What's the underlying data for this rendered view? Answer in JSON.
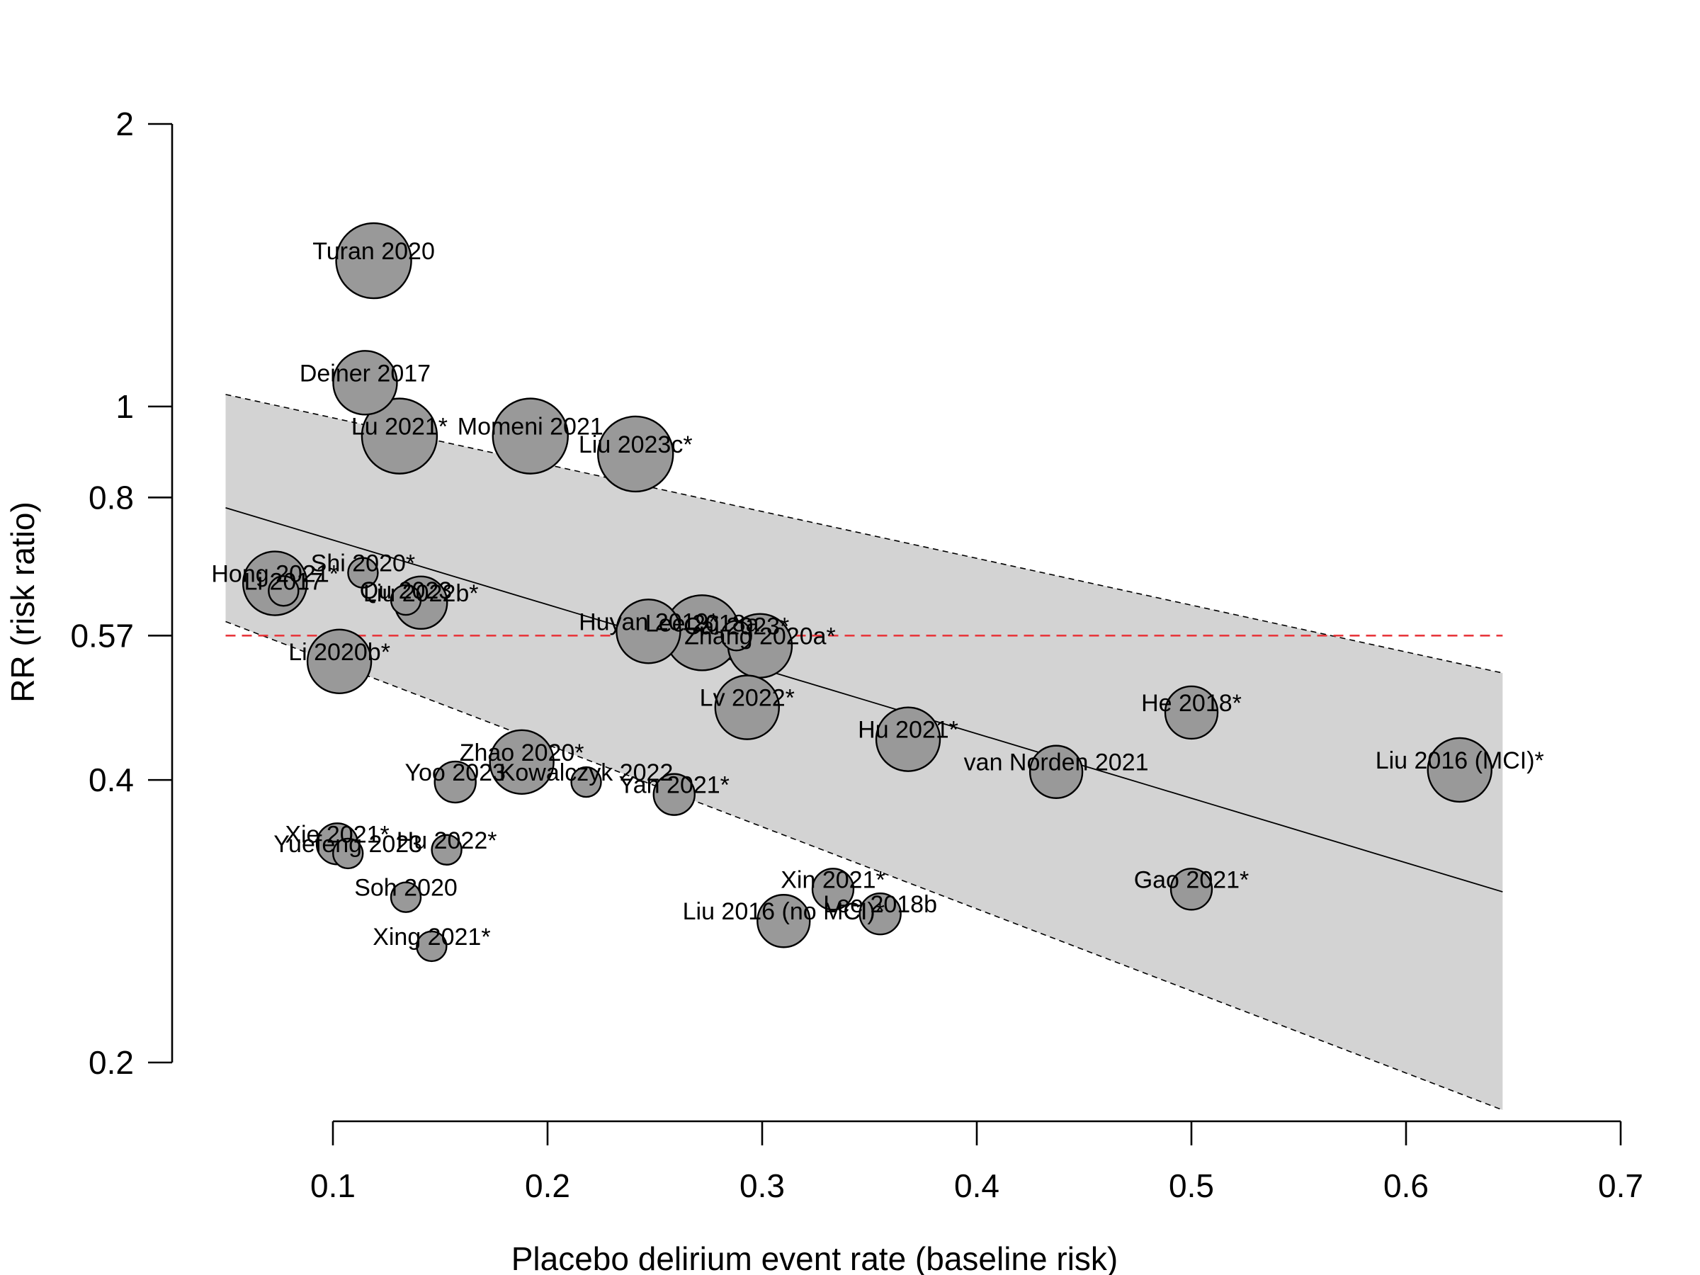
{
  "chart_data": {
    "type": "scatter",
    "title": "",
    "xlabel": "Placebo delirium event rate (baseline risk)",
    "ylabel": "RR (risk ratio)",
    "xlim": [
      0.1,
      0.7
    ],
    "ylim": [
      0.2,
      2
    ],
    "y_scale": "log",
    "x_ticks": [
      "0.1",
      "0.2",
      "0.3",
      "0.4",
      "0.5",
      "0.6",
      "0.7"
    ],
    "y_ticks": [
      "0.2",
      "0.4",
      "0.57",
      "0.8",
      "1",
      "2"
    ],
    "reference_line": {
      "y": 0.57,
      "style": "dashed",
      "color": "#e8383d"
    },
    "regression": {
      "x_range": [
        0.05,
        0.645
      ],
      "fit": [
        0.78,
        0.304
      ],
      "upper": [
        1.03,
        0.52
      ],
      "lower": [
        0.59,
        0.178
      ]
    },
    "colors": {
      "point_fill": "#999999",
      "band_fill": "#d3d3d3",
      "fit_line": "#000000",
      "ref_line": "#e8383d"
    },
    "points": [
      {
        "label": "Turan 2020",
        "x": 0.119,
        "y": 1.43,
        "size": 5
      },
      {
        "label": "Deiner 2017",
        "x": 0.115,
        "y": 1.06,
        "size": 4
      },
      {
        "label": "Lu 2021*",
        "x": 0.131,
        "y": 0.93,
        "size": 5
      },
      {
        "label": "Momeni 2021",
        "x": 0.192,
        "y": 0.93,
        "size": 5
      },
      {
        "label": "Liu 2023c*",
        "x": 0.241,
        "y": 0.89,
        "size": 5
      },
      {
        "label": "Shi 2020*",
        "x": 0.114,
        "y": 0.665,
        "size": 1
      },
      {
        "label": "Hong 2021*",
        "x": 0.073,
        "y": 0.648,
        "size": 4
      },
      {
        "label": "Li 2017",
        "x": 0.077,
        "y": 0.636,
        "size": 1
      },
      {
        "label": "Liu 2022b*",
        "x": 0.141,
        "y": 0.618,
        "size": 3
      },
      {
        "label": "Qu 2023",
        "x": 0.134,
        "y": 0.622,
        "size": 1
      },
      {
        "label": "Huyan 2019*",
        "x": 0.247,
        "y": 0.576,
        "size": 4
      },
      {
        "label": "Lee 2018a",
        "x": 0.272,
        "y": 0.574,
        "size": 5
      },
      {
        "label": "Zhang 2020a*",
        "x": 0.299,
        "y": 0.556,
        "size": 4
      },
      {
        "label": "Cai 2023*",
        "x": 0.288,
        "y": 0.57,
        "size": 1
      },
      {
        "label": "Li 2020b*",
        "x": 0.103,
        "y": 0.535,
        "size": 4
      },
      {
        "label": "Lv 2022*",
        "x": 0.293,
        "y": 0.478,
        "size": 4
      },
      {
        "label": "Hu 2021*",
        "x": 0.368,
        "y": 0.442,
        "size": 4
      },
      {
        "label": "He 2018*",
        "x": 0.5,
        "y": 0.472,
        "size": 3
      },
      {
        "label": "Liu 2016 (MCI)*",
        "x": 0.625,
        "y": 0.41,
        "size": 4
      },
      {
        "label": "van Norden 2021",
        "x": 0.437,
        "y": 0.408,
        "size": 3
      },
      {
        "label": "Zhao 2020*",
        "x": 0.188,
        "y": 0.418,
        "size": 4
      },
      {
        "label": "Yoo 2023",
        "x": 0.157,
        "y": 0.398,
        "size": 2
      },
      {
        "label": "Kowalczyk 2022",
        "x": 0.218,
        "y": 0.398,
        "size": 1
      },
      {
        "label": "Yan 2021*",
        "x": 0.259,
        "y": 0.386,
        "size": 2
      },
      {
        "label": "Xie 2021*",
        "x": 0.102,
        "y": 0.342,
        "size": 2
      },
      {
        "label": "Yuefeng 2023",
        "x": 0.107,
        "y": 0.334,
        "size": 1
      },
      {
        "label": "Hu 2022*",
        "x": 0.153,
        "y": 0.337,
        "size": 1
      },
      {
        "label": "Soh 2020",
        "x": 0.134,
        "y": 0.3,
        "size": 1
      },
      {
        "label": "Xin 2021*",
        "x": 0.333,
        "y": 0.306,
        "size": 2
      },
      {
        "label": "Gao 2021*",
        "x": 0.5,
        "y": 0.306,
        "size": 2
      },
      {
        "label": "Liu 2016 (no MCI)*",
        "x": 0.31,
        "y": 0.283,
        "size": 3
      },
      {
        "label": "Lee 2018b",
        "x": 0.355,
        "y": 0.288,
        "size": 2
      },
      {
        "label": "Xing 2021*",
        "x": 0.146,
        "y": 0.266,
        "size": 1
      }
    ]
  }
}
